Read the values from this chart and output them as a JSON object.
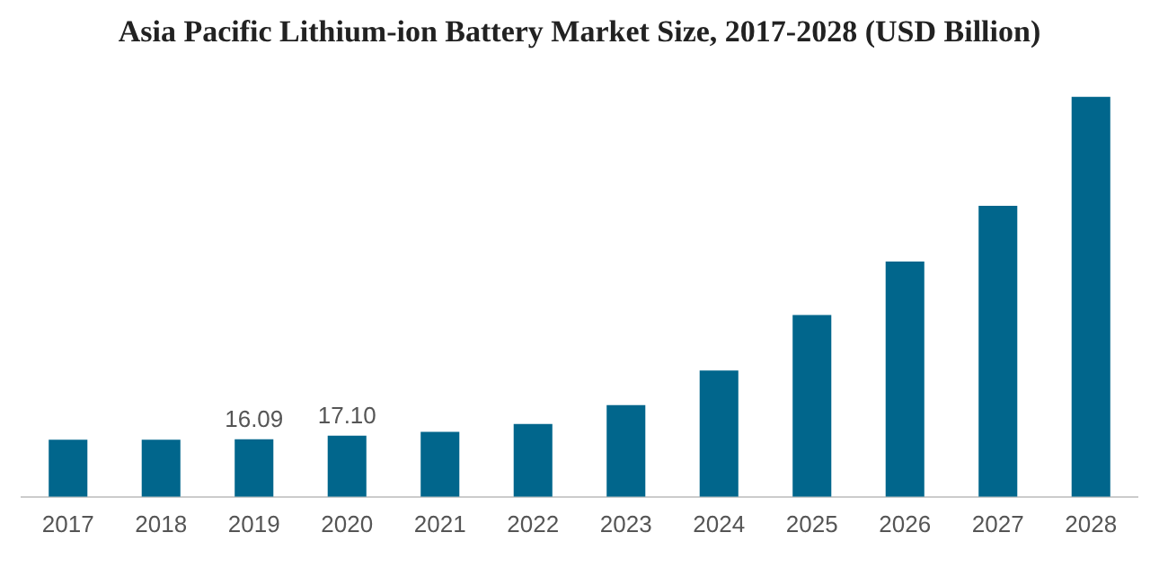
{
  "chart_data": {
    "type": "bar",
    "title": "Asia Pacific Lithium-ion Battery Market Size, 2017-2028 (USD Billion)",
    "categories": [
      "2017",
      "2018",
      "2019",
      "2020",
      "2021",
      "2022",
      "2023",
      "2024",
      "2025",
      "2026",
      "2027",
      "2028"
    ],
    "values": [
      16.0,
      16.0,
      16.09,
      17.1,
      18.2,
      20.4,
      25.7,
      35.4,
      50.9,
      65.9,
      81.5,
      112
    ],
    "value_labels": [
      null,
      null,
      "16.09",
      "17.10",
      null,
      null,
      null,
      null,
      null,
      null,
      null,
      null
    ],
    "color": "#01668c",
    "grid": false,
    "legend": false
  }
}
